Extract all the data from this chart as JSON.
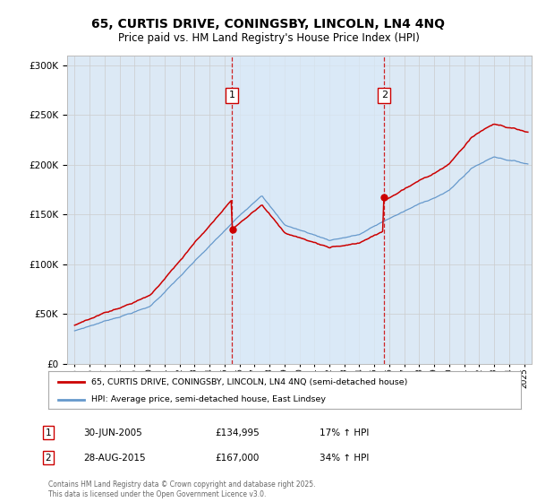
{
  "title": "65, CURTIS DRIVE, CONINGSBY, LINCOLN, LN4 4NQ",
  "subtitle": "Price paid vs. HM Land Registry's House Price Index (HPI)",
  "red_label": "65, CURTIS DRIVE, CONINGSBY, LINCOLN, LN4 4NQ (semi-detached house)",
  "blue_label": "HPI: Average price, semi-detached house, East Lindsey",
  "annotation1_date": "30-JUN-2005",
  "annotation1_price": "£134,995",
  "annotation1_hpi": "17% ↑ HPI",
  "annotation2_date": "28-AUG-2015",
  "annotation2_price": "£167,000",
  "annotation2_hpi": "34% ↑ HPI",
  "copyright": "Contains HM Land Registry data © Crown copyright and database right 2025.\nThis data is licensed under the Open Government Licence v3.0.",
  "vline1_x": 2005.5,
  "vline2_x": 2015.66,
  "ylim": [
    0,
    310000
  ],
  "xlim": [
    1994.5,
    2025.5
  ],
  "background_color": "#dce9f5",
  "shade_color": "#daeaf8",
  "plot_bg": "#ffffff",
  "red_color": "#cc0000",
  "blue_color": "#6699cc",
  "grid_color": "#cccccc",
  "title_fontsize": 10,
  "subtitle_fontsize": 8.5
}
